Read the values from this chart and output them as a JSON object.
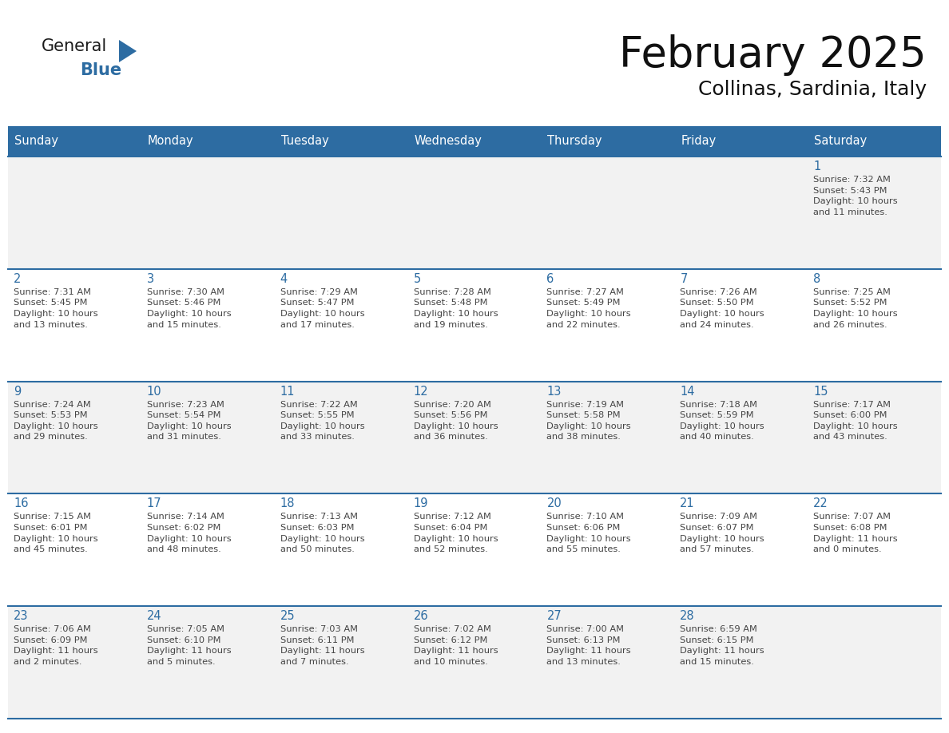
{
  "title": "February 2025",
  "subtitle": "Collinas, Sardinia, Italy",
  "header_bg": "#2D6CA2",
  "header_text_color": "#FFFFFF",
  "row_line_color": "#2D6CA2",
  "days_of_week": [
    "Sunday",
    "Monday",
    "Tuesday",
    "Wednesday",
    "Thursday",
    "Friday",
    "Saturday"
  ],
  "cell_bg_light": "#F2F2F2",
  "cell_bg_white": "#FFFFFF",
  "calendar_data": [
    [
      {
        "day": "",
        "info": ""
      },
      {
        "day": "",
        "info": ""
      },
      {
        "day": "",
        "info": ""
      },
      {
        "day": "",
        "info": ""
      },
      {
        "day": "",
        "info": ""
      },
      {
        "day": "",
        "info": ""
      },
      {
        "day": "1",
        "info": "Sunrise: 7:32 AM\nSunset: 5:43 PM\nDaylight: 10 hours\nand 11 minutes."
      }
    ],
    [
      {
        "day": "2",
        "info": "Sunrise: 7:31 AM\nSunset: 5:45 PM\nDaylight: 10 hours\nand 13 minutes."
      },
      {
        "day": "3",
        "info": "Sunrise: 7:30 AM\nSunset: 5:46 PM\nDaylight: 10 hours\nand 15 minutes."
      },
      {
        "day": "4",
        "info": "Sunrise: 7:29 AM\nSunset: 5:47 PM\nDaylight: 10 hours\nand 17 minutes."
      },
      {
        "day": "5",
        "info": "Sunrise: 7:28 AM\nSunset: 5:48 PM\nDaylight: 10 hours\nand 19 minutes."
      },
      {
        "day": "6",
        "info": "Sunrise: 7:27 AM\nSunset: 5:49 PM\nDaylight: 10 hours\nand 22 minutes."
      },
      {
        "day": "7",
        "info": "Sunrise: 7:26 AM\nSunset: 5:50 PM\nDaylight: 10 hours\nand 24 minutes."
      },
      {
        "day": "8",
        "info": "Sunrise: 7:25 AM\nSunset: 5:52 PM\nDaylight: 10 hours\nand 26 minutes."
      }
    ],
    [
      {
        "day": "9",
        "info": "Sunrise: 7:24 AM\nSunset: 5:53 PM\nDaylight: 10 hours\nand 29 minutes."
      },
      {
        "day": "10",
        "info": "Sunrise: 7:23 AM\nSunset: 5:54 PM\nDaylight: 10 hours\nand 31 minutes."
      },
      {
        "day": "11",
        "info": "Sunrise: 7:22 AM\nSunset: 5:55 PM\nDaylight: 10 hours\nand 33 minutes."
      },
      {
        "day": "12",
        "info": "Sunrise: 7:20 AM\nSunset: 5:56 PM\nDaylight: 10 hours\nand 36 minutes."
      },
      {
        "day": "13",
        "info": "Sunrise: 7:19 AM\nSunset: 5:58 PM\nDaylight: 10 hours\nand 38 minutes."
      },
      {
        "day": "14",
        "info": "Sunrise: 7:18 AM\nSunset: 5:59 PM\nDaylight: 10 hours\nand 40 minutes."
      },
      {
        "day": "15",
        "info": "Sunrise: 7:17 AM\nSunset: 6:00 PM\nDaylight: 10 hours\nand 43 minutes."
      }
    ],
    [
      {
        "day": "16",
        "info": "Sunrise: 7:15 AM\nSunset: 6:01 PM\nDaylight: 10 hours\nand 45 minutes."
      },
      {
        "day": "17",
        "info": "Sunrise: 7:14 AM\nSunset: 6:02 PM\nDaylight: 10 hours\nand 48 minutes."
      },
      {
        "day": "18",
        "info": "Sunrise: 7:13 AM\nSunset: 6:03 PM\nDaylight: 10 hours\nand 50 minutes."
      },
      {
        "day": "19",
        "info": "Sunrise: 7:12 AM\nSunset: 6:04 PM\nDaylight: 10 hours\nand 52 minutes."
      },
      {
        "day": "20",
        "info": "Sunrise: 7:10 AM\nSunset: 6:06 PM\nDaylight: 10 hours\nand 55 minutes."
      },
      {
        "day": "21",
        "info": "Sunrise: 7:09 AM\nSunset: 6:07 PM\nDaylight: 10 hours\nand 57 minutes."
      },
      {
        "day": "22",
        "info": "Sunrise: 7:07 AM\nSunset: 6:08 PM\nDaylight: 11 hours\nand 0 minutes."
      }
    ],
    [
      {
        "day": "23",
        "info": "Sunrise: 7:06 AM\nSunset: 6:09 PM\nDaylight: 11 hours\nand 2 minutes."
      },
      {
        "day": "24",
        "info": "Sunrise: 7:05 AM\nSunset: 6:10 PM\nDaylight: 11 hours\nand 5 minutes."
      },
      {
        "day": "25",
        "info": "Sunrise: 7:03 AM\nSunset: 6:11 PM\nDaylight: 11 hours\nand 7 minutes."
      },
      {
        "day": "26",
        "info": "Sunrise: 7:02 AM\nSunset: 6:12 PM\nDaylight: 11 hours\nand 10 minutes."
      },
      {
        "day": "27",
        "info": "Sunrise: 7:00 AM\nSunset: 6:13 PM\nDaylight: 11 hours\nand 13 minutes."
      },
      {
        "day": "28",
        "info": "Sunrise: 6:59 AM\nSunset: 6:15 PM\nDaylight: 11 hours\nand 15 minutes."
      },
      {
        "day": "",
        "info": ""
      }
    ]
  ],
  "logo_general_color": "#1a1a1a",
  "logo_blue_color": "#2D6CA2",
  "logo_triangle_color": "#2D6CA2",
  "day_num_color": "#2D6CA2",
  "info_text_color": "#444444"
}
